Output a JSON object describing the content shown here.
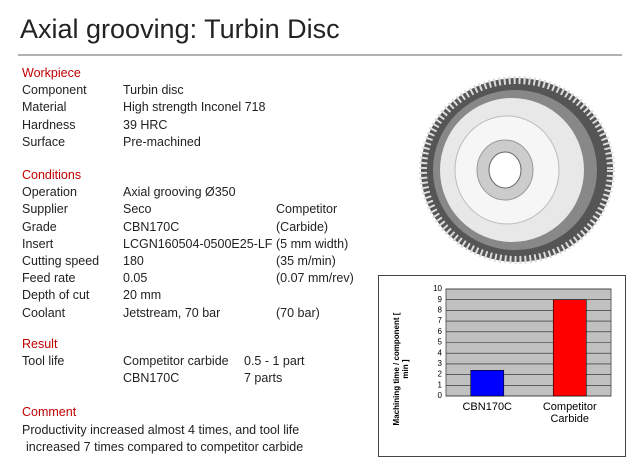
{
  "title": "Axial grooving: Turbin Disc",
  "workpiece": {
    "heading": "Workpiece",
    "rows": [
      [
        "Component",
        "Turbin disc"
      ],
      [
        "Material",
        "High strength Inconel 718"
      ],
      [
        "Hardness",
        "39 HRC"
      ],
      [
        "Surface",
        "Pre-machined"
      ]
    ]
  },
  "conditions": {
    "heading": "Conditions",
    "rows": [
      [
        "Operation",
        "Axial grooving Ø350"
      ],
      [
        "Supplier",
        "Seco",
        "Competitor"
      ],
      [
        "Grade",
        "CBN170C",
        "(Carbide)"
      ],
      [
        "Insert",
        "LCGN160504-0500E25-LF",
        "(5 mm width)"
      ],
      [
        "Cutting speed",
        "180",
        "(35 m/min)"
      ],
      [
        "Feed rate",
        "0.05",
        "(0.07 mm/rev)"
      ],
      [
        "Depth of cut",
        "20 mm"
      ],
      [
        "Coolant",
        "Jetstream, 70 bar",
        "(70 bar)"
      ]
    ]
  },
  "result": {
    "heading": "Result",
    "label": "Tool life",
    "rows": [
      [
        "Competitor carbide",
        "0.5 - 1 part"
      ],
      [
        "CBN170C",
        "7 parts"
      ]
    ]
  },
  "comment": {
    "heading": "Comment",
    "lines": [
      "Productivity increased almost 4 times, and tool life",
      "increased 7 times compared to competitor carbide"
    ]
  },
  "chart_data": {
    "type": "bar",
    "y_label": "Machining time / component [ min ]",
    "categories": [
      "CBN170C",
      "Competitor Carbide"
    ],
    "values": [
      2.4,
      9
    ],
    "colors": [
      "#0000ff",
      "#ff0000"
    ],
    "ylim": [
      0,
      10
    ],
    "yticks": [
      0,
      1,
      2,
      3,
      4,
      5,
      6,
      7,
      8,
      9,
      10
    ],
    "grid": true
  }
}
